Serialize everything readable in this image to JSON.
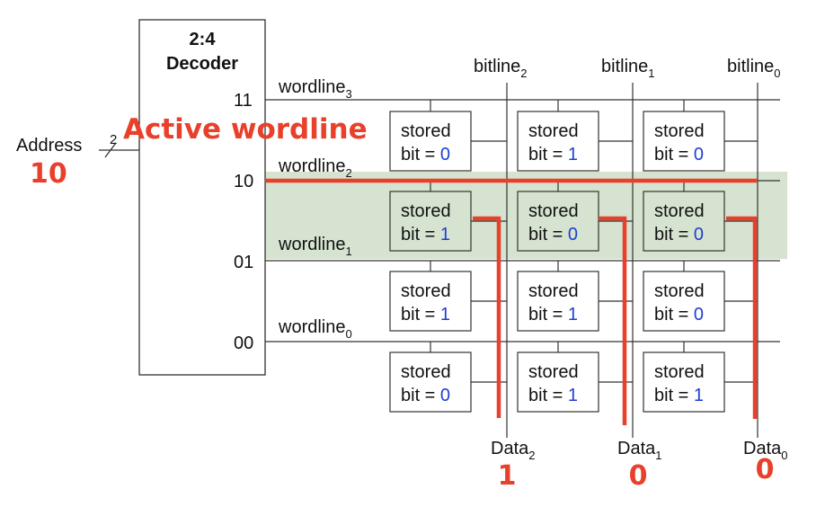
{
  "decoder": {
    "title_line1": "2:4",
    "title_line2": "Decoder"
  },
  "address": {
    "label": "Address",
    "bus_width": "2",
    "value": "10"
  },
  "active_label": "Active wordline",
  "row_codes": [
    "11",
    "10",
    "01",
    "00"
  ],
  "wordlines": [
    {
      "base": "wordline",
      "sub": "3"
    },
    {
      "base": "wordline",
      "sub": "2"
    },
    {
      "base": "wordline",
      "sub": "1"
    },
    {
      "base": "wordline",
      "sub": "0"
    }
  ],
  "bitlines": [
    {
      "base": "bitline",
      "sub": "2"
    },
    {
      "base": "bitline",
      "sub": "1"
    },
    {
      "base": "bitline",
      "sub": "0"
    }
  ],
  "cell_text": {
    "line1": "stored",
    "line2": "bit = "
  },
  "cells": [
    [
      "0",
      "1",
      "0"
    ],
    [
      "1",
      "0",
      "0"
    ],
    [
      "1",
      "1",
      "0"
    ],
    [
      "0",
      "1",
      "1"
    ]
  ],
  "data_outputs": [
    {
      "base": "Data",
      "sub": "2",
      "value": "1"
    },
    {
      "base": "Data",
      "sub": "1",
      "value": "0"
    },
    {
      "base": "Data",
      "sub": "0",
      "value": "0"
    }
  ],
  "colors": {
    "highlight": "#d5e3d0",
    "active": "#e8402b",
    "bit_value": "#1f3fcf"
  }
}
